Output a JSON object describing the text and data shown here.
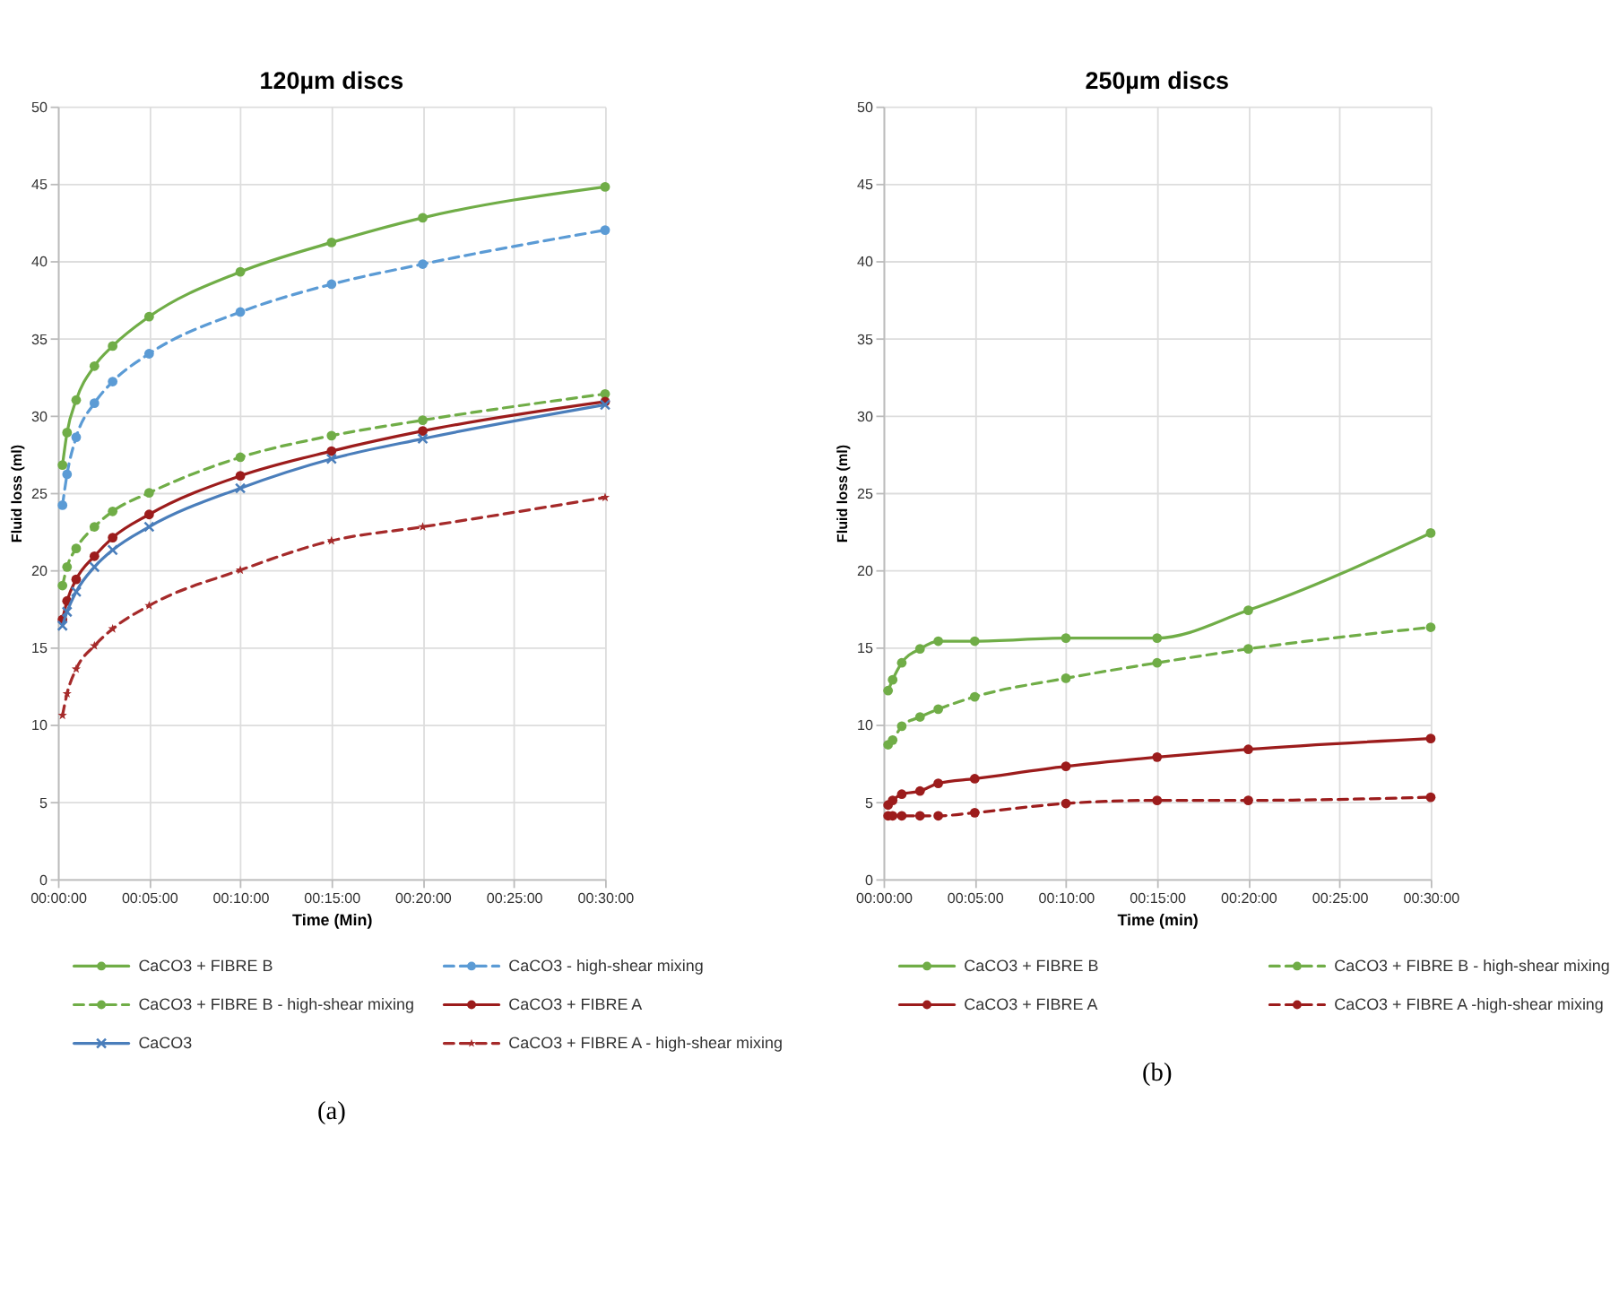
{
  "chart_data": [
    {
      "type": "line",
      "title": "120µm discs",
      "xlabel": "Time (Min)",
      "ylabel": "Fluid loss (ml)",
      "xlim": [
        0,
        30
      ],
      "ylim": [
        0,
        50
      ],
      "xticks": [
        {
          "value": 0,
          "label": "00:00:00"
        },
        {
          "value": 5,
          "label": "00:05:00"
        },
        {
          "value": 10,
          "label": "00:10:00"
        },
        {
          "value": 15,
          "label": "00:15:00"
        },
        {
          "value": 20,
          "label": "00:20:00"
        },
        {
          "value": 25,
          "label": "00:25:00"
        },
        {
          "value": 30,
          "label": "00:30:00"
        }
      ],
      "yticks": [
        0,
        5,
        10,
        15,
        20,
        25,
        30,
        35,
        40,
        45,
        50
      ],
      "grid": true,
      "legend": "bottom",
      "annotations": [
        "(a)"
      ],
      "x": [
        0.25,
        0.5,
        1,
        2,
        3,
        5,
        10,
        15,
        20,
        30
      ],
      "series": [
        {
          "name": "CaCO3 + FIBRE B",
          "color": "#70ad47",
          "marker": "circle",
          "line_style": "solid",
          "values": [
            26.8,
            28.9,
            31,
            33.2,
            34.5,
            36.4,
            39.3,
            41.2,
            42.8,
            44.8
          ]
        },
        {
          "name": "CaCO3 - high-shear mixing",
          "color": "#5b9bd5",
          "marker": "circle",
          "line_style": "dashed",
          "values": [
            24.2,
            26.2,
            28.6,
            30.8,
            32.2,
            34.0,
            36.7,
            38.5,
            39.8,
            42.0
          ]
        },
        {
          "name": "CaCO3 + FIBRE B - high-shear mixing",
          "color": "#70ad47",
          "marker": "circle",
          "line_style": "dashed",
          "values": [
            19,
            20.2,
            21.4,
            22.8,
            23.8,
            25.0,
            27.3,
            28.7,
            29.7,
            31.4
          ]
        },
        {
          "name": "CaCO3 + FIBRE A",
          "color": "#9c1c1c",
          "marker": "circle",
          "line_style": "solid",
          "values": [
            16.8,
            18,
            19.4,
            20.9,
            22.1,
            23.6,
            26.1,
            27.7,
            29.0,
            30.9
          ]
        },
        {
          "name": "CaCO3",
          "color": "#4a7ebb",
          "marker": "cross",
          "line_style": "solid",
          "values": [
            16.4,
            17.3,
            18.6,
            20.2,
            21.3,
            22.8,
            25.3,
            27.2,
            28.5,
            30.7
          ]
        },
        {
          "name": "CaCO3 + FIBRE A - high-shear mixing",
          "color": "#a52a2a",
          "marker": "star",
          "line_style": "dashed",
          "values": [
            10.6,
            12.0,
            13.6,
            15.1,
            16.2,
            17.7,
            20.0,
            21.9,
            22.8,
            24.7
          ]
        }
      ]
    },
    {
      "type": "line",
      "title": "250µm discs",
      "xlabel": "Time (min)",
      "ylabel": "Fluid loss (ml)",
      "xlim": [
        0,
        30
      ],
      "ylim": [
        0,
        50
      ],
      "xticks": [
        {
          "value": 0,
          "label": "00:00:00"
        },
        {
          "value": 5,
          "label": "00:05:00"
        },
        {
          "value": 10,
          "label": "00:10:00"
        },
        {
          "value": 15,
          "label": "00:15:00"
        },
        {
          "value": 20,
          "label": "00:20:00"
        },
        {
          "value": 25,
          "label": "00:25:00"
        },
        {
          "value": 30,
          "label": "00:30:00"
        }
      ],
      "yticks": [
        0,
        5,
        10,
        15,
        20,
        25,
        30,
        35,
        40,
        45,
        50
      ],
      "grid": true,
      "legend": "bottom",
      "annotations": [
        "(b)"
      ],
      "x": [
        0.25,
        0.5,
        1,
        2,
        3,
        5,
        10,
        15,
        20,
        30
      ],
      "series": [
        {
          "name": "CaCO3 + FIBRE B",
          "color": "#70ad47",
          "marker": "circle",
          "line_style": "solid",
          "values": [
            12.2,
            12.9,
            14.0,
            14.9,
            15.4,
            15.4,
            15.6,
            15.6,
            17.4,
            22.4
          ]
        },
        {
          "name": "CaCO3 + FIBRE B - high-shear mixing",
          "color": "#70ad47",
          "marker": "circle",
          "line_style": "dashed",
          "values": [
            8.7,
            9.0,
            9.9,
            10.5,
            11.0,
            11.8,
            13.0,
            14.0,
            14.9,
            16.3
          ]
        },
        {
          "name": "CaCO3 + FIBRE A",
          "color": "#9c1c1c",
          "marker": "circle",
          "line_style": "solid",
          "values": [
            4.8,
            5.1,
            5.5,
            5.7,
            6.2,
            6.5,
            7.3,
            7.9,
            8.4,
            9.1
          ]
        },
        {
          "name": "CaCO3 + FIBRE A -high-shear mixing",
          "color": "#9c1c1c",
          "marker": "circle",
          "line_style": "dashed",
          "values": [
            4.1,
            4.1,
            4.1,
            4.1,
            4.1,
            4.3,
            4.9,
            5.1,
            5.1,
            5.3
          ]
        }
      ]
    }
  ]
}
